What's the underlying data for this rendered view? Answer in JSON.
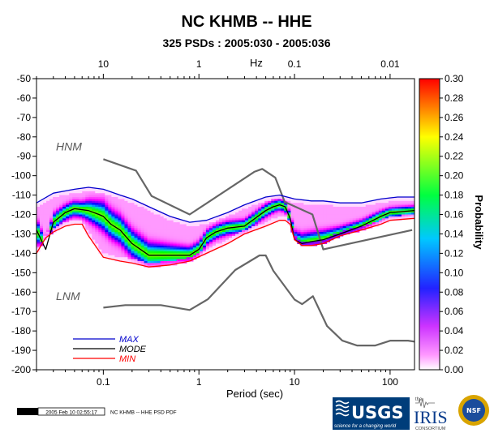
{
  "chart_data": {
    "type": "heatmap",
    "title": "NC KHMB -- HHE",
    "subtitle": "325 PSDs : 2005:030 - 2005:036",
    "xlabel": "Period (sec)",
    "xlabel_top": "Hz",
    "ylabel": "",
    "colorbar_label": "Probability",
    "x_scale": "log",
    "xlim": [
      0.02,
      180
    ],
    "ylim": [
      -200,
      -50
    ],
    "bottom_ticks": [
      {
        "v": 0.1,
        "label": "0.1"
      },
      {
        "v": 1,
        "label": "1"
      },
      {
        "v": 10,
        "label": "10"
      },
      {
        "v": 100,
        "label": "100"
      }
    ],
    "top_ticks": [
      {
        "v": 0.1,
        "label": "10"
      },
      {
        "v": 1,
        "label": "1"
      },
      {
        "v": 10,
        "label": "0.1"
      },
      {
        "v": 100,
        "label": "0.01"
      }
    ],
    "y_ticks": [
      -50,
      -60,
      -70,
      -80,
      -90,
      -100,
      -110,
      -120,
      -130,
      -140,
      -150,
      -160,
      -170,
      -180,
      -190,
      -200
    ],
    "colorbar_ticks": [
      "0.00",
      "0.02",
      "0.04",
      "0.06",
      "0.08",
      "0.10",
      "0.12",
      "0.14",
      "0.16",
      "0.18",
      "0.20",
      "0.22",
      "0.24",
      "0.26",
      "0.28",
      "0.30"
    ],
    "colorbar_range": [
      0,
      0.3
    ],
    "colormap": [
      "#ffffff",
      "#ff00ff",
      "#0000ff",
      "#00c8ff",
      "#00ff00",
      "#ffff00",
      "#ff0000"
    ],
    "series": [
      {
        "name": "MAX",
        "color": "#0000cc",
        "x": [
          0.02,
          0.03,
          0.05,
          0.07,
          0.1,
          0.15,
          0.2,
          0.3,
          0.5,
          0.8,
          1.2,
          2,
          3,
          5,
          7,
          10,
          15,
          20,
          30,
          50,
          80,
          120,
          180
        ],
        "y": [
          -114,
          -109,
          -107,
          -106,
          -107,
          -110,
          -112,
          -116,
          -121,
          -124,
          -123,
          -119,
          -115,
          -111,
          -110,
          -112,
          -113,
          -113,
          -114,
          -114,
          -112,
          -111,
          -111
        ]
      },
      {
        "name": "MODE",
        "color": "#000000",
        "x": [
          0.02,
          0.025,
          0.03,
          0.04,
          0.05,
          0.07,
          0.09,
          0.1,
          0.12,
          0.15,
          0.2,
          0.3,
          0.5,
          0.8,
          1.0,
          1.2,
          1.5,
          2,
          3,
          5,
          6,
          7,
          8,
          9,
          10,
          12,
          15,
          20,
          30,
          50,
          80,
          100,
          180
        ],
        "y": [
          -128,
          -138,
          -124,
          -119,
          -117,
          -118,
          -120,
          -121,
          -125,
          -128,
          -135,
          -141,
          -141,
          -141,
          -138,
          -132,
          -129,
          -127,
          -126,
          -118,
          -116,
          -115,
          -116,
          -122,
          -133,
          -135,
          -134,
          -133,
          -130,
          -126,
          -121,
          -119,
          -118
        ]
      },
      {
        "name": "MIN",
        "color": "#ff0000",
        "x": [
          0.02,
          0.025,
          0.03,
          0.04,
          0.05,
          0.06,
          0.07,
          0.1,
          0.15,
          0.2,
          0.3,
          0.5,
          0.8,
          1.2,
          2,
          3,
          5,
          7,
          8,
          9,
          10,
          12,
          15,
          20,
          30,
          50,
          80,
          100,
          180
        ],
        "y": [
          -140,
          -132,
          -129,
          -126,
          -125,
          -125,
          -131,
          -142,
          -144,
          -145,
          -147,
          -146,
          -144,
          -140,
          -135,
          -130,
          -126,
          -123,
          -123,
          -125,
          -133,
          -136,
          -136,
          -135,
          -131,
          -128,
          -125,
          -123,
          -122
        ]
      }
    ],
    "noise_models": [
      {
        "name": "HNM",
        "color": "#666666",
        "x": [
          0.1,
          0.22,
          0.32,
          0.8,
          3.8,
          4.6,
          6.3,
          7.9,
          15.4,
          20,
          170
        ],
        "y": [
          -91.5,
          -97.4,
          -110.5,
          -120,
          -98,
          -96.5,
          -101,
          -113.5,
          -120,
          -138,
          -128
        ]
      },
      {
        "name": "LNM",
        "color": "#666666",
        "x": [
          0.1,
          0.17,
          0.4,
          0.8,
          1.24,
          2.4,
          4.3,
          5,
          6,
          10,
          12,
          15.6,
          21.9,
          31.6,
          45,
          70,
          101,
          154,
          180
        ],
        "y": [
          -168,
          -166.7,
          -166.7,
          -169.2,
          -163.7,
          -148.6,
          -141.1,
          -141.1,
          -149,
          -163.8,
          -166.2,
          -162.1,
          -177.5,
          -185,
          -187.5,
          -187.5,
          -185,
          -185,
          -185.5
        ]
      }
    ]
  },
  "legend": {
    "max_label": "MAX",
    "mode_label": "MODE",
    "min_label": "MIN"
  },
  "footer": {
    "gmt_label": "GMT",
    "timestamp": "2005 Feb 10 02:55:17",
    "caption": "NC KHMB -- HHE PSD PDF"
  },
  "logos": {
    "usgs_text": "USGS",
    "usgs_tagline": "science for a changing world",
    "iris_prefix": "the",
    "iris_text": "IRIS",
    "iris_sub": "CONSORTIUM",
    "nsf_text": "NSF"
  }
}
